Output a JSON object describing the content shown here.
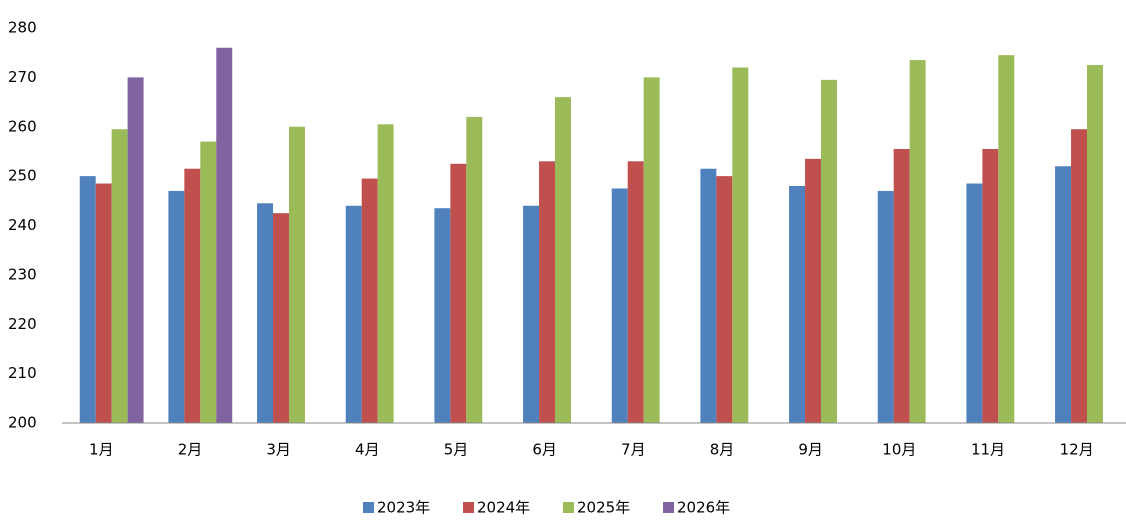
{
  "chart_data": {
    "type": "bar",
    "categories": [
      "1月",
      "2月",
      "3月",
      "4月",
      "5月",
      "6月",
      "7月",
      "8月",
      "9月",
      "10月",
      "11月",
      "12月"
    ],
    "series": [
      {
        "name": "2023年",
        "color": "#4f81bd",
        "values": [
          250,
          247,
          244.5,
          244,
          243.5,
          244,
          247.5,
          251.5,
          248,
          247,
          248.5,
          252
        ]
      },
      {
        "name": "2024年",
        "color": "#c0504d",
        "values": [
          248.5,
          251.5,
          242.5,
          249.5,
          252.5,
          253,
          253,
          250,
          253.5,
          255.5,
          255.5,
          259.5
        ]
      },
      {
        "name": "2025年",
        "color": "#9bbb59",
        "values": [
          259.5,
          257,
          260,
          260.5,
          262,
          266,
          270,
          272,
          269.5,
          273.5,
          274.5,
          272.5
        ]
      },
      {
        "name": "2026年",
        "color": "#8064a2",
        "values": [
          270,
          276,
          null,
          null,
          null,
          null,
          null,
          null,
          null,
          null,
          null,
          null
        ]
      }
    ],
    "ylim": [
      200,
      280
    ],
    "yticks": [
      200,
      210,
      220,
      230,
      240,
      250,
      260,
      270,
      280
    ],
    "grid": false
  }
}
